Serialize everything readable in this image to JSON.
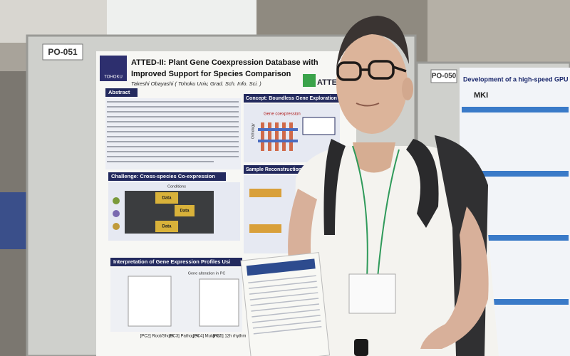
{
  "left_poster": {
    "board_id": "PO-051",
    "title_lines": [
      "ATTED-II: Plant Gene Coexpression Database with",
      "Improved Support for Species Comparison"
    ],
    "author": "Takeshi Obayashi ( Tohoku Univ, Grad. Sch. Info. Sci. )",
    "logo": "TOHOKU",
    "brand": "ATTED",
    "sections": [
      "Abstract",
      "Concept: Boundless Gene Exploration",
      "Challenge: Cross-species Co-expression",
      "Sample Reconstruction",
      "Interpretation of Gene Expression Profiles Usi"
    ],
    "figure_labels": [
      "Gene coexpression",
      "Orthology",
      "Conditions",
      "Data",
      "Data",
      "Data",
      "Gene alteration in PC"
    ],
    "pc_labels": [
      "[PC2] Root/Shoot",
      "[PC3] Pathogen",
      "[PC4] Mutants",
      "[PC5] 12h rhythm"
    ]
  },
  "right_poster": {
    "board_id": "PO-050",
    "title": "Development of a high-speed GPU database for",
    "brand": "MKI"
  }
}
